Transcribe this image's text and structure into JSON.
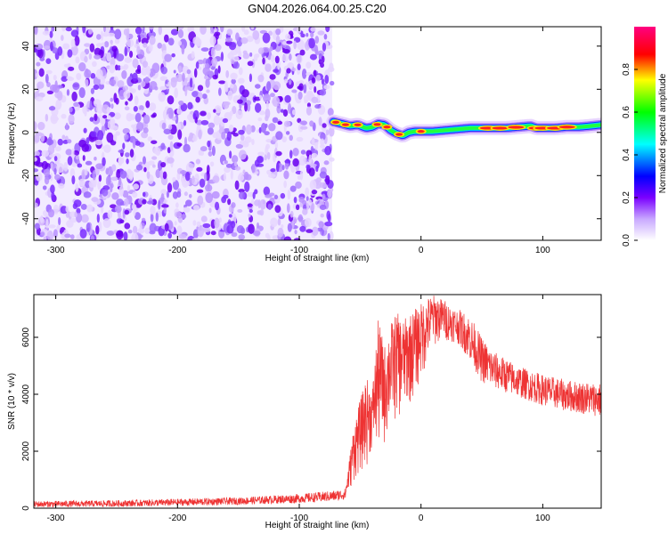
{
  "figure": {
    "title": "GN04.2026.064.00.25.C20"
  },
  "chart_data": [
    {
      "type": "heatmap",
      "title": "GN04.2026.064.00.25.C20",
      "xlabel": "Height of straight line (km)",
      "ylabel": "Frequency (Hz)",
      "xlim": [
        -318,
        148
      ],
      "ylim": [
        -50,
        49
      ],
      "xticks": [
        -300,
        -200,
        -100,
        0,
        100
      ],
      "xtick_labels": [
        "-300",
        "-200",
        "-100",
        "0",
        "100"
      ],
      "yticks": [
        -40,
        -20,
        0,
        20,
        40
      ],
      "ytick_labels": [
        "-40",
        "-20",
        "0",
        "20",
        "40"
      ],
      "noise_region_x": [
        -318,
        -73
      ],
      "signal_start_x": -73,
      "signal_trace": {
        "x": [
          -72,
          -65,
          -58,
          -52,
          -45,
          -40,
          -35,
          -30,
          -25,
          -20,
          -15,
          -10,
          -5,
          0,
          10,
          20,
          30,
          40,
          50,
          60,
          70,
          80,
          90,
          95,
          100,
          110,
          120,
          130,
          140,
          148
        ],
        "y": [
          5,
          4,
          3,
          3.5,
          2,
          2.5,
          4,
          3.5,
          1,
          -0.5,
          -1.5,
          0,
          0.5,
          0.5,
          0.5,
          1,
          1.5,
          2,
          2,
          2,
          2,
          2.5,
          3,
          2,
          2,
          2,
          2.5,
          2.5,
          3,
          3.5
        ]
      },
      "colorbar": {
        "label": "Normalized spectral amplitude",
        "range": [
          0,
          1
        ],
        "ticks": [
          0.0,
          0.2,
          0.4,
          0.6,
          0.8
        ],
        "tick_labels": [
          "0.0",
          "0.2",
          "0.4",
          "0.6",
          "0.8"
        ],
        "colors": [
          "#ffffff",
          "#8800ff",
          "#0000ff",
          "#00ffff",
          "#00ff00",
          "#ffff00",
          "#ff0000",
          "#ff00ff"
        ]
      }
    },
    {
      "type": "line",
      "xlabel": "Height of straight line (km)",
      "ylabel": "SNR (10 * v/v)",
      "xlim": [
        -318,
        148
      ],
      "ylim": [
        0,
        7500
      ],
      "xticks": [
        -300,
        -200,
        -100,
        0,
        100
      ],
      "xtick_labels": [
        "-300",
        "-200",
        "-100",
        "0",
        "100"
      ],
      "yticks": [
        0,
        2000,
        4000,
        6000
      ],
      "ytick_labels": [
        "0",
        "2000",
        "4000",
        "6000"
      ],
      "color": "#ee3333",
      "envelope": {
        "x": [
          -318,
          -250,
          -200,
          -150,
          -100,
          -80,
          -70,
          -62,
          -55,
          -45,
          -40,
          -35,
          -30,
          -25,
          -20,
          -15,
          -10,
          -5,
          0,
          5,
          10,
          20,
          30,
          40,
          50,
          60,
          80,
          100,
          120,
          148
        ],
        "lower": [
          30,
          50,
          80,
          120,
          180,
          220,
          250,
          300,
          900,
          1400,
          2000,
          1800,
          2100,
          2800,
          3000,
          3200,
          3500,
          3900,
          4400,
          5000,
          5600,
          5900,
          5800,
          5200,
          4400,
          4200,
          3900,
          3600,
          3400,
          3200
        ],
        "upper": [
          250,
          280,
          330,
          380,
          500,
          580,
          620,
          700,
          3000,
          4600,
          4200,
          6700,
          5700,
          6500,
          6900,
          6600,
          6800,
          7000,
          7200,
          7400,
          7500,
          7300,
          7000,
          6800,
          6000,
          5500,
          5000,
          4700,
          4500,
          4400
        ]
      }
    }
  ]
}
